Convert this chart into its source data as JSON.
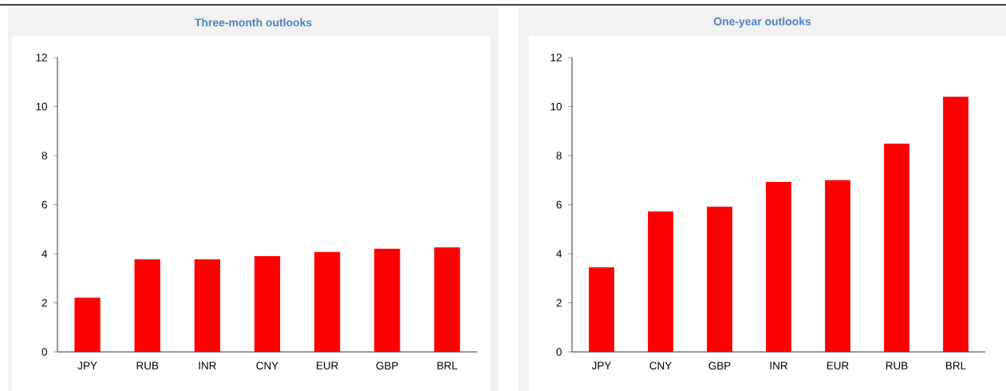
{
  "chart_data": [
    {
      "type": "bar",
      "title": "Three-month outlooks",
      "categories": [
        "JPY",
        "RUB",
        "INR",
        "CNY",
        "EUR",
        "GBP",
        "BRL"
      ],
      "values": [
        2.21,
        3.77,
        3.77,
        3.9,
        4.07,
        4.2,
        4.26
      ],
      "color": "#ff0000",
      "ylim": [
        0,
        12
      ],
      "yticks": [
        0,
        2,
        4,
        6,
        8,
        10,
        12
      ],
      "grid": false
    },
    {
      "type": "bar",
      "title": "One-year outlooks",
      "categories": [
        "JPY",
        "CNY",
        "GBP",
        "INR",
        "EUR",
        "RUB",
        "BRL"
      ],
      "values": [
        3.45,
        5.72,
        5.92,
        6.93,
        7.0,
        8.49,
        10.4
      ],
      "color": "#ff0000",
      "ylim": [
        0,
        12
      ],
      "yticks": [
        0,
        2,
        4,
        6,
        8,
        10,
        12
      ],
      "grid": false
    }
  ]
}
